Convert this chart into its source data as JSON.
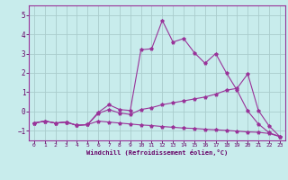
{
  "xlabel": "Windchill (Refroidissement éolien,°C)",
  "bg_color": "#c8ecec",
  "grid_color": "#aacccc",
  "line_color": "#993399",
  "xlim": [
    -0.5,
    23.5
  ],
  "ylim": [
    -1.5,
    5.5
  ],
  "yticks": [
    -1,
    0,
    1,
    2,
    3,
    4,
    5
  ],
  "xticks": [
    0,
    1,
    2,
    3,
    4,
    5,
    6,
    7,
    8,
    9,
    10,
    11,
    12,
    13,
    14,
    15,
    16,
    17,
    18,
    19,
    20,
    21,
    22,
    23
  ],
  "line1_x": [
    0,
    1,
    2,
    3,
    4,
    5,
    6,
    7,
    8,
    9,
    10,
    11,
    12,
    13,
    14,
    15,
    16,
    17,
    18,
    19,
    20,
    21,
    22,
    23
  ],
  "line1_y": [
    -0.6,
    -0.5,
    -0.6,
    -0.55,
    -0.72,
    -0.68,
    -0.05,
    0.35,
    0.1,
    0.05,
    3.2,
    3.25,
    4.72,
    3.6,
    3.78,
    3.05,
    2.5,
    3.0,
    2.0,
    1.1,
    0.02,
    -0.65,
    -1.1,
    -1.3
  ],
  "line2_x": [
    0,
    1,
    2,
    3,
    4,
    5,
    6,
    7,
    8,
    9,
    10,
    11,
    12,
    13,
    14,
    15,
    16,
    17,
    18,
    19,
    20,
    21,
    22,
    23
  ],
  "line2_y": [
    -0.6,
    -0.5,
    -0.6,
    -0.55,
    -0.72,
    -0.68,
    -0.1,
    0.1,
    -0.08,
    -0.15,
    0.1,
    0.2,
    0.35,
    0.45,
    0.55,
    0.65,
    0.75,
    0.9,
    1.1,
    1.2,
    1.95,
    0.05,
    -0.75,
    -1.3
  ],
  "line3_x": [
    0,
    1,
    2,
    3,
    4,
    5,
    6,
    7,
    8,
    9,
    10,
    11,
    12,
    13,
    14,
    15,
    16,
    17,
    18,
    19,
    20,
    21,
    22,
    23
  ],
  "line3_y": [
    -0.6,
    -0.5,
    -0.6,
    -0.55,
    -0.72,
    -0.68,
    -0.5,
    -0.55,
    -0.6,
    -0.65,
    -0.7,
    -0.73,
    -0.78,
    -0.82,
    -0.86,
    -0.88,
    -0.92,
    -0.95,
    -0.98,
    -1.02,
    -1.06,
    -1.08,
    -1.14,
    -1.3
  ]
}
